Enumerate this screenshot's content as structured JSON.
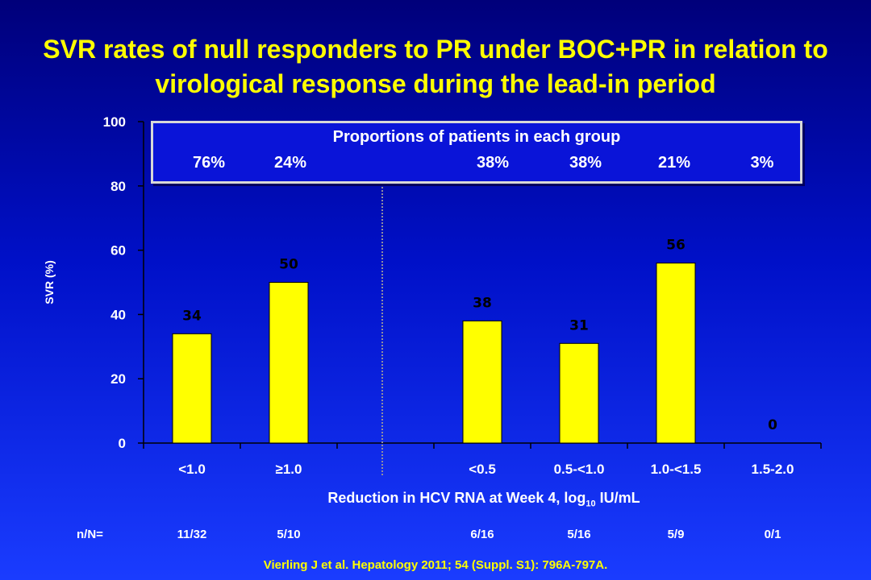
{
  "title": "SVR rates of null responders to PR under BOC+PR in relation to virological response during the lead-in period",
  "proportions_box": {
    "title": "Proportions of patients in each group",
    "values": [
      "76%",
      "24%",
      "38%",
      "38%",
      "21%",
      "3%"
    ]
  },
  "n_row": {
    "label": "n/N=",
    "values": [
      "11/32",
      "5/10",
      "6/16",
      "5/16",
      "5/9",
      "0/1"
    ]
  },
  "citation": "Vierling J et al. Hepatology 2011; 54 (Suppl. S1): 796A-797A.",
  "chart_data": {
    "type": "bar",
    "categories": [
      "<1.0",
      "≥1.0",
      "<0.5",
      "0.5-<1.0",
      "1.0-<1.5",
      "1.5-2.0"
    ],
    "values": [
      34,
      50,
      38,
      31,
      56,
      0
    ],
    "data_labels": [
      "34",
      "50",
      "38",
      "31",
      "56",
      "0"
    ],
    "xlabel": {
      "main": "Reduction in HCV RNA at Week 4, log",
      "sub": "10",
      "tail": " IU/mL"
    },
    "ylabel": "SVR (%)",
    "ylim": [
      0,
      100
    ],
    "yticks": [
      "0",
      "20",
      "40",
      "60",
      "80",
      "100"
    ],
    "grid": false,
    "divider_after_category_slot": 3,
    "colors": {
      "bar": "#ffff00",
      "bar_edge": "#000000",
      "axis": "#000000",
      "divider": "#9090a0"
    }
  }
}
